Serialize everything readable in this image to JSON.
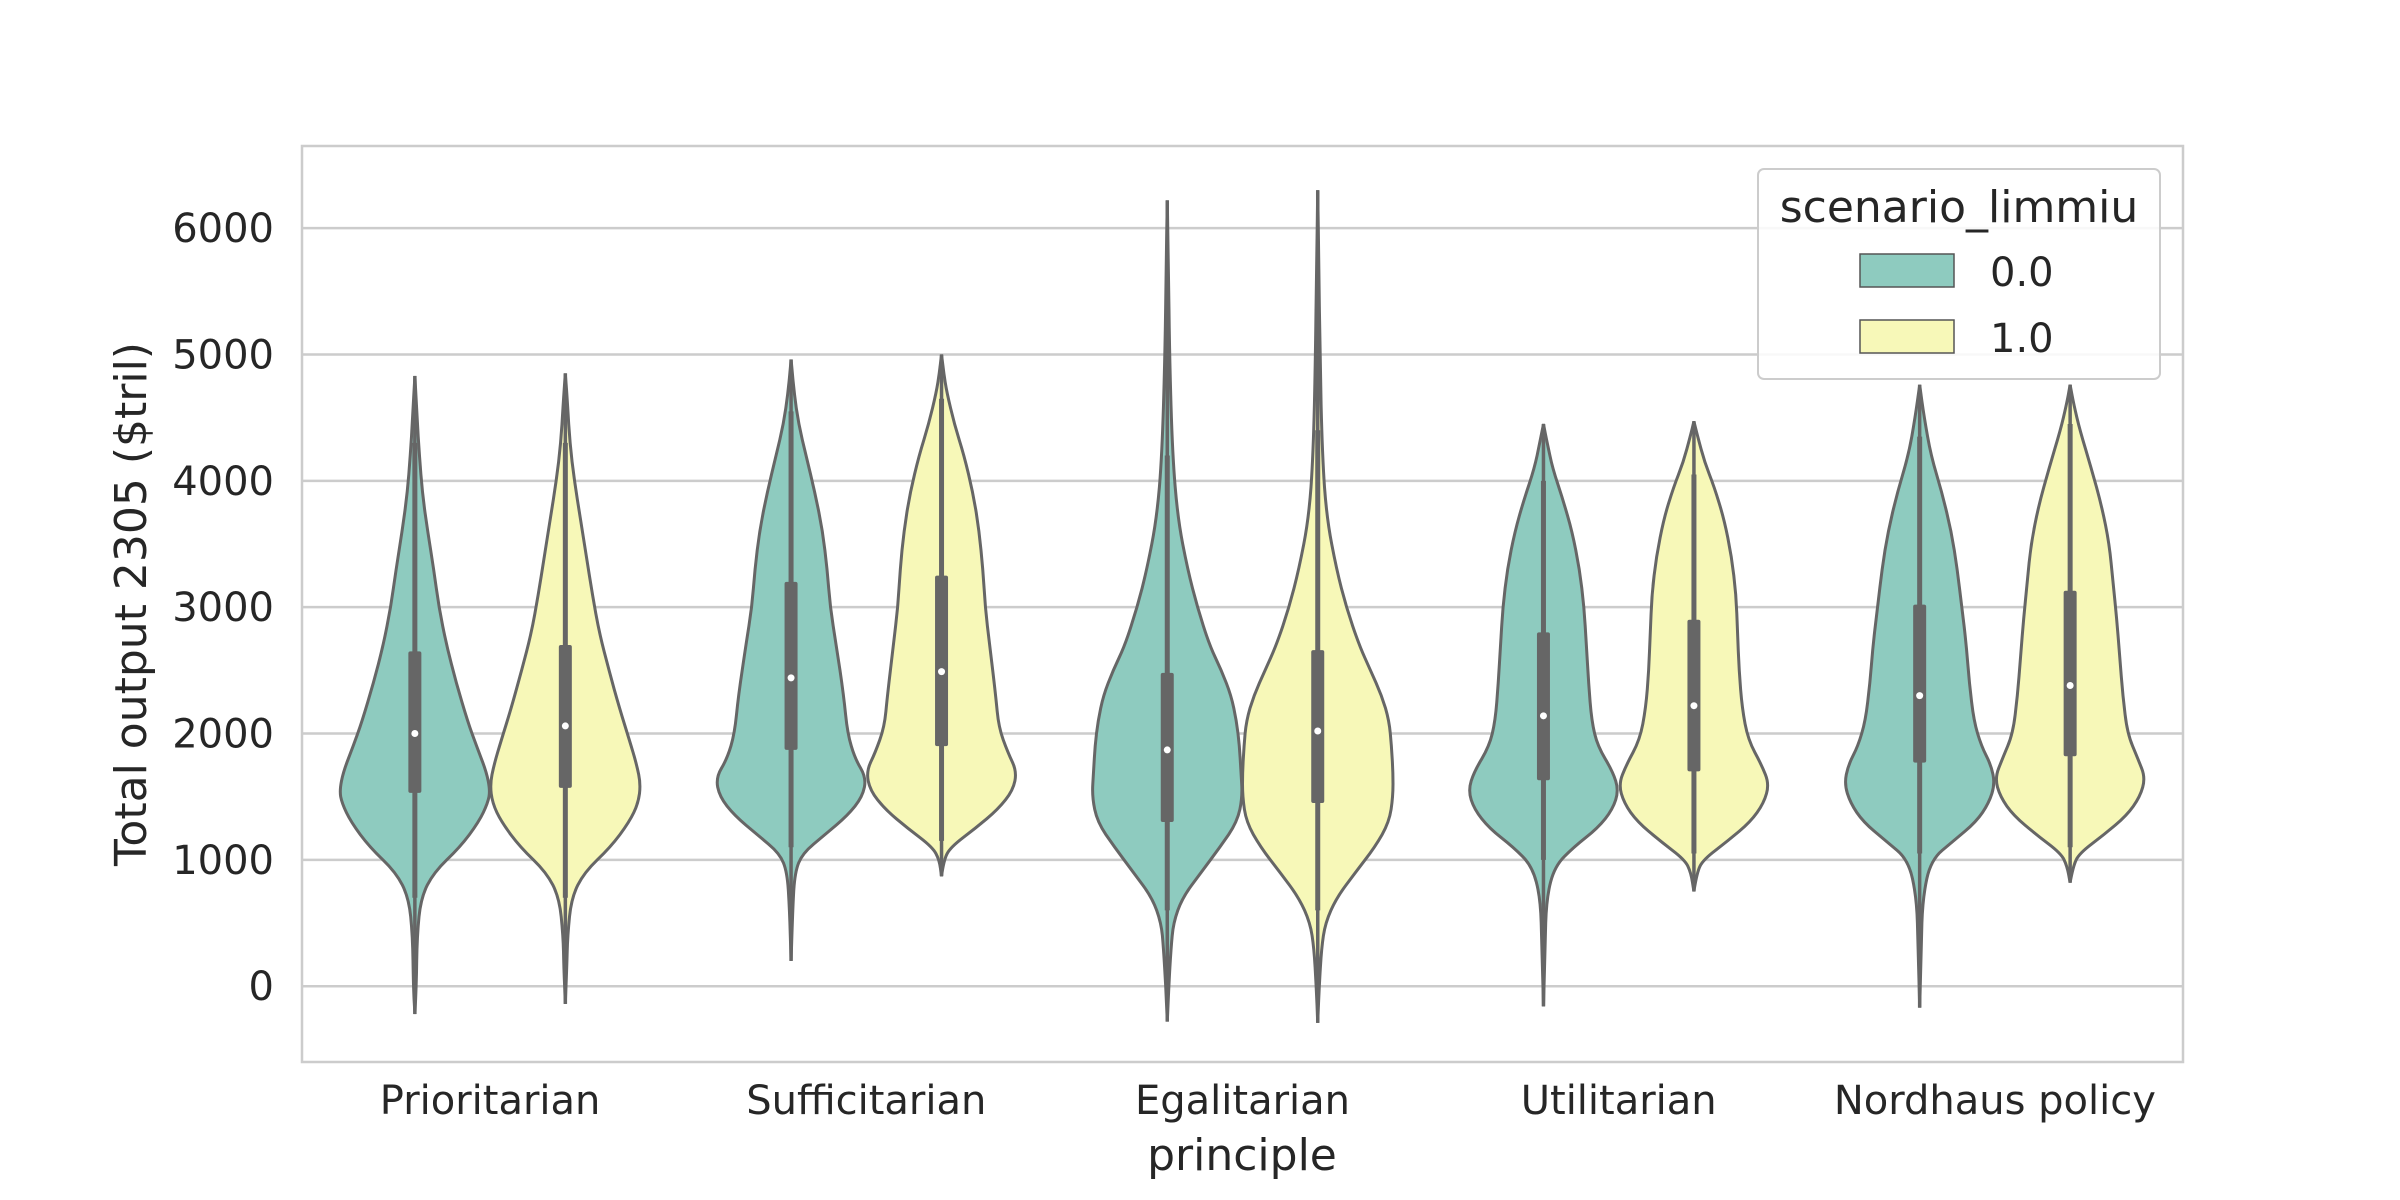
{
  "chart_data": {
    "type": "violin",
    "title": "",
    "xlabel": "principle",
    "ylabel": "Total output 2305 ($tril)",
    "ylim": [
      -600,
      6650
    ],
    "yticks": [
      0,
      1000,
      2000,
      3000,
      4000,
      5000,
      6000
    ],
    "grid": true,
    "legend": {
      "title": "scenario_limmiu",
      "placement": "top-right",
      "entries": [
        "0.0",
        "1.0"
      ]
    },
    "colors": {
      "0.0": "#8ecbbf",
      "1.0": "#f7f8b8",
      "edge": "#666666",
      "grid": "#cccccc",
      "frame": "#cccccc"
    },
    "categories": [
      "Prioritarian",
      "Sufficitarian",
      "Egalitarian",
      "Utilitarian",
      "Nordhaus policy"
    ],
    "series": [
      {
        "name": "0.0",
        "violins": [
          {
            "min": -220,
            "max": 4830,
            "median": 2000,
            "q1": 1530,
            "q3": 2650,
            "wlo": 700,
            "whi": 4300,
            "profile": [
              [
                -220,
                0
              ],
              [
                0,
                0.02
              ],
              [
                400,
                0.03
              ],
              [
                700,
                0.08
              ],
              [
                900,
                0.25
              ],
              [
                1100,
                0.6
              ],
              [
                1300,
                0.85
              ],
              [
                1450,
                0.97
              ],
              [
                1550,
                1.0
              ],
              [
                1700,
                0.95
              ],
              [
                1900,
                0.82
              ],
              [
                2100,
                0.7
              ],
              [
                2400,
                0.55
              ],
              [
                2700,
                0.42
              ],
              [
                3000,
                0.32
              ],
              [
                3300,
                0.25
              ],
              [
                3600,
                0.17
              ],
              [
                3900,
                0.1
              ],
              [
                4200,
                0.06
              ],
              [
                4500,
                0.03
              ],
              [
                4830,
                0
              ]
            ]
          },
          {
            "min": 200,
            "max": 4960,
            "median": 2440,
            "q1": 1870,
            "q3": 3200,
            "wlo": 1100,
            "whi": 4550,
            "profile": [
              [
                200,
                0
              ],
              [
                600,
                0.02
              ],
              [
                900,
                0.05
              ],
              [
                1050,
                0.15
              ],
              [
                1200,
                0.45
              ],
              [
                1350,
                0.75
              ],
              [
                1500,
                0.95
              ],
              [
                1650,
                1.0
              ],
              [
                1800,
                0.85
              ],
              [
                2000,
                0.75
              ],
              [
                2300,
                0.7
              ],
              [
                2700,
                0.6
              ],
              [
                3000,
                0.52
              ],
              [
                3300,
                0.48
              ],
              [
                3600,
                0.42
              ],
              [
                3900,
                0.32
              ],
              [
                4200,
                0.2
              ],
              [
                4450,
                0.1
              ],
              [
                4700,
                0.04
              ],
              [
                4960,
                0
              ]
            ]
          },
          {
            "min": -280,
            "max": 6220,
            "median": 1870,
            "q1": 1300,
            "q3": 2480,
            "wlo": 600,
            "whi": 4200,
            "profile": [
              [
                -280,
                0
              ],
              [
                0,
                0.02
              ],
              [
                300,
                0.05
              ],
              [
                500,
                0.08
              ],
              [
                700,
                0.2
              ],
              [
                900,
                0.45
              ],
              [
                1100,
                0.7
              ],
              [
                1300,
                0.93
              ],
              [
                1500,
                1.0
              ],
              [
                1700,
                0.98
              ],
              [
                1900,
                0.96
              ],
              [
                2100,
                0.92
              ],
              [
                2300,
                0.85
              ],
              [
                2500,
                0.72
              ],
              [
                2700,
                0.56
              ],
              [
                3000,
                0.4
              ],
              [
                3300,
                0.27
              ],
              [
                3700,
                0.14
              ],
              [
                4200,
                0.07
              ],
              [
                5000,
                0.03
              ],
              [
                5700,
                0.015
              ],
              [
                6220,
                0
              ]
            ]
          },
          {
            "min": -160,
            "max": 4450,
            "median": 2140,
            "q1": 1630,
            "q3": 2800,
            "wlo": 1000,
            "whi": 4000,
            "profile": [
              [
                -160,
                0
              ],
              [
                300,
                0.02
              ],
              [
                700,
                0.04
              ],
              [
                950,
                0.15
              ],
              [
                1100,
                0.4
              ],
              [
                1250,
                0.72
              ],
              [
                1400,
                0.92
              ],
              [
                1550,
                1.0
              ],
              [
                1700,
                0.92
              ],
              [
                1900,
                0.72
              ],
              [
                2100,
                0.64
              ],
              [
                2400,
                0.6
              ],
              [
                2700,
                0.57
              ],
              [
                3000,
                0.54
              ],
              [
                3300,
                0.48
              ],
              [
                3600,
                0.38
              ],
              [
                3850,
                0.26
              ],
              [
                4100,
                0.12
              ],
              [
                4300,
                0.05
              ],
              [
                4450,
                0
              ]
            ]
          },
          {
            "min": -170,
            "max": 4760,
            "median": 2300,
            "q1": 1770,
            "q3": 3020,
            "wlo": 1050,
            "whi": 4350,
            "profile": [
              [
                -170,
                0
              ],
              [
                300,
                0.02
              ],
              [
                700,
                0.04
              ],
              [
                1000,
                0.15
              ],
              [
                1150,
                0.45
              ],
              [
                1300,
                0.75
              ],
              [
                1450,
                0.92
              ],
              [
                1600,
                1.0
              ],
              [
                1750,
                0.95
              ],
              [
                1900,
                0.82
              ],
              [
                2100,
                0.72
              ],
              [
                2400,
                0.66
              ],
              [
                2700,
                0.62
              ],
              [
                3000,
                0.56
              ],
              [
                3300,
                0.5
              ],
              [
                3600,
                0.42
              ],
              [
                3900,
                0.3
              ],
              [
                4200,
                0.15
              ],
              [
                4500,
                0.06
              ],
              [
                4760,
                0
              ]
            ]
          }
        ]
      },
      {
        "name": "1.0",
        "violins": [
          {
            "min": -140,
            "max": 4850,
            "median": 2060,
            "q1": 1570,
            "q3": 2700,
            "wlo": 700,
            "whi": 4300,
            "profile": [
              [
                -140,
                0
              ],
              [
                150,
                0.02
              ],
              [
                400,
                0.03
              ],
              [
                700,
                0.08
              ],
              [
                900,
                0.25
              ],
              [
                1100,
                0.6
              ],
              [
                1300,
                0.85
              ],
              [
                1450,
                0.97
              ],
              [
                1600,
                1.0
              ],
              [
                1750,
                0.95
              ],
              [
                1950,
                0.85
              ],
              [
                2200,
                0.72
              ],
              [
                2500,
                0.58
              ],
              [
                2800,
                0.45
              ],
              [
                3100,
                0.36
              ],
              [
                3400,
                0.28
              ],
              [
                3700,
                0.2
              ],
              [
                4000,
                0.12
              ],
              [
                4300,
                0.06
              ],
              [
                4600,
                0.03
              ],
              [
                4850,
                0
              ]
            ]
          },
          {
            "min": 870,
            "max": 5000,
            "median": 2490,
            "q1": 1900,
            "q3": 3250,
            "wlo": 1150,
            "whi": 4650,
            "profile": [
              [
                870,
                0
              ],
              [
                1000,
                0.03
              ],
              [
                1100,
                0.12
              ],
              [
                1250,
                0.45
              ],
              [
                1400,
                0.75
              ],
              [
                1550,
                0.95
              ],
              [
                1700,
                1.0
              ],
              [
                1850,
                0.88
              ],
              [
                2050,
                0.76
              ],
              [
                2300,
                0.72
              ],
              [
                2700,
                0.64
              ],
              [
                3000,
                0.58
              ],
              [
                3300,
                0.55
              ],
              [
                3600,
                0.5
              ],
              [
                3900,
                0.42
              ],
              [
                4200,
                0.3
              ],
              [
                4450,
                0.17
              ],
              [
                4700,
                0.07
              ],
              [
                4850,
                0.03
              ],
              [
                5000,
                0
              ]
            ]
          },
          {
            "min": -290,
            "max": 6300,
            "median": 2020,
            "q1": 1450,
            "q3": 2660,
            "wlo": 600,
            "whi": 4400,
            "profile": [
              [
                -290,
                0
              ],
              [
                0,
                0.02
              ],
              [
                300,
                0.05
              ],
              [
                500,
                0.1
              ],
              [
                700,
                0.25
              ],
              [
                900,
                0.5
              ],
              [
                1100,
                0.76
              ],
              [
                1300,
                0.95
              ],
              [
                1500,
                1.0
              ],
              [
                1700,
                1.0
              ],
              [
                1900,
                0.98
              ],
              [
                2100,
                0.95
              ],
              [
                2300,
                0.85
              ],
              [
                2500,
                0.7
              ],
              [
                2700,
                0.55
              ],
              [
                3000,
                0.38
              ],
              [
                3300,
                0.25
              ],
              [
                3700,
                0.12
              ],
              [
                4200,
                0.06
              ],
              [
                5000,
                0.03
              ],
              [
                5700,
                0.015
              ],
              [
                6300,
                0
              ]
            ]
          },
          {
            "min": 750,
            "max": 4470,
            "median": 2220,
            "q1": 1700,
            "q3": 2900,
            "wlo": 1050,
            "whi": 4050,
            "profile": [
              [
                750,
                0
              ],
              [
                900,
                0.04
              ],
              [
                1000,
                0.12
              ],
              [
                1150,
                0.45
              ],
              [
                1300,
                0.75
              ],
              [
                1450,
                0.93
              ],
              [
                1600,
                1.0
              ],
              [
                1750,
                0.9
              ],
              [
                1950,
                0.72
              ],
              [
                2200,
                0.64
              ],
              [
                2500,
                0.6
              ],
              [
                2800,
                0.58
              ],
              [
                3100,
                0.56
              ],
              [
                3400,
                0.5
              ],
              [
                3700,
                0.4
              ],
              [
                3950,
                0.27
              ],
              [
                4150,
                0.14
              ],
              [
                4350,
                0.05
              ],
              [
                4470,
                0
              ]
            ]
          },
          {
            "min": 820,
            "max": 4760,
            "median": 2380,
            "q1": 1820,
            "q3": 3130,
            "wlo": 1100,
            "whi": 4450,
            "profile": [
              [
                820,
                0
              ],
              [
                950,
                0.04
              ],
              [
                1050,
                0.12
              ],
              [
                1200,
                0.45
              ],
              [
                1350,
                0.75
              ],
              [
                1500,
                0.93
              ],
              [
                1650,
                1.0
              ],
              [
                1800,
                0.9
              ],
              [
                2000,
                0.76
              ],
              [
                2300,
                0.7
              ],
              [
                2600,
                0.66
              ],
              [
                2900,
                0.62
              ],
              [
                3200,
                0.57
              ],
              [
                3500,
                0.52
              ],
              [
                3800,
                0.42
              ],
              [
                4100,
                0.28
              ],
              [
                4400,
                0.13
              ],
              [
                4600,
                0.05
              ],
              [
                4760,
                0
              ]
            ]
          }
        ]
      }
    ]
  }
}
